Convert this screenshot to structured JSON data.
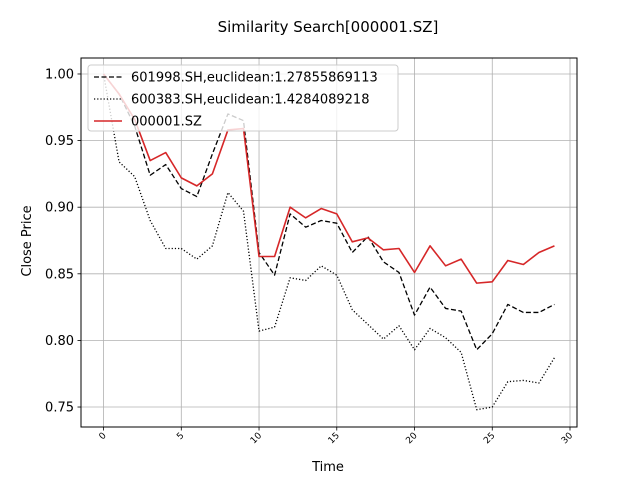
{
  "chart_data": {
    "type": "line",
    "title": "Similarity Search[000001.SZ]",
    "xlabel": "Time",
    "ylabel": "Close Price",
    "xlim": [
      -1.45,
      30.45
    ],
    "ylim": [
      0.735,
      1.012
    ],
    "xticks": [
      0,
      5,
      10,
      15,
      20,
      25,
      30
    ],
    "xtick_labels": [
      "0",
      "5",
      "10",
      "15",
      "20",
      "25",
      "30"
    ],
    "yticks": [
      0.75,
      0.8,
      0.85,
      0.9,
      0.95,
      1.0
    ],
    "ytick_labels": [
      "0.75",
      "0.80",
      "0.85",
      "0.90",
      "0.95",
      "1.00"
    ],
    "grid": true,
    "legend_position": "top-left",
    "x": [
      0,
      1,
      2,
      3,
      4,
      5,
      6,
      7,
      8,
      9,
      10,
      11,
      12,
      13,
      14,
      15,
      16,
      17,
      18,
      19,
      20,
      21,
      22,
      23,
      24,
      25,
      26,
      27,
      28,
      29
    ],
    "series": [
      {
        "name": "601998.SH,euclidean:1.27855869113",
        "color": "#000000",
        "style": "dashed",
        "values": [
          1.0,
          0.985,
          0.961,
          0.924,
          0.932,
          0.914,
          0.908,
          0.94,
          0.97,
          0.965,
          0.866,
          0.849,
          0.895,
          0.885,
          0.89,
          0.888,
          0.866,
          0.878,
          0.859,
          0.851,
          0.819,
          0.84,
          0.824,
          0.822,
          0.793,
          0.805,
          0.827,
          0.821,
          0.821,
          0.827
        ]
      },
      {
        "name": "600383.SH,euclidean:1.4284089218",
        "color": "#000000",
        "style": "dotted",
        "values": [
          1.0,
          0.934,
          0.923,
          0.89,
          0.869,
          0.869,
          0.861,
          0.871,
          0.911,
          0.897,
          0.807,
          0.81,
          0.847,
          0.845,
          0.856,
          0.849,
          0.823,
          0.812,
          0.801,
          0.811,
          0.793,
          0.809,
          0.802,
          0.791,
          0.748,
          0.75,
          0.769,
          0.77,
          0.768,
          0.787
        ]
      },
      {
        "name": "000001.SZ",
        "color": "#d62728",
        "style": "solid",
        "values": [
          1.0,
          0.985,
          0.966,
          0.935,
          0.941,
          0.922,
          0.916,
          0.925,
          0.958,
          0.959,
          0.863,
          0.863,
          0.9,
          0.892,
          0.899,
          0.895,
          0.874,
          0.877,
          0.868,
          0.869,
          0.851,
          0.871,
          0.856,
          0.861,
          0.843,
          0.844,
          0.86,
          0.857,
          0.866,
          0.871
        ]
      }
    ]
  }
}
